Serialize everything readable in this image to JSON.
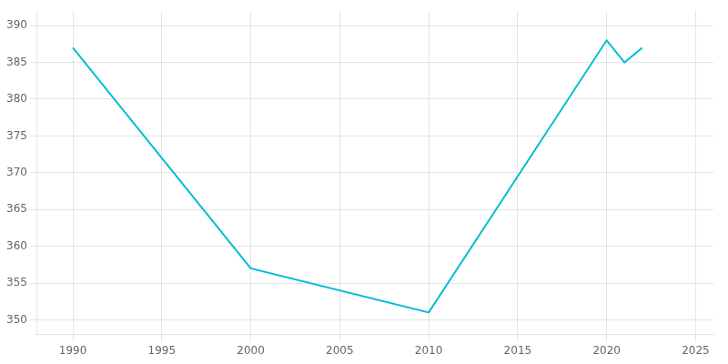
{
  "chart_data": {
    "type": "line",
    "x": [
      1990,
      2000,
      2010,
      2020,
      2021,
      2022
    ],
    "values": [
      387,
      357,
      351,
      388,
      385,
      387
    ],
    "color": "#00bcd4",
    "xlim": [
      1988,
      2026
    ],
    "ylim": [
      348,
      392
    ],
    "xticks": [
      1990,
      1995,
      2000,
      2005,
      2010,
      2015,
      2020,
      2025
    ],
    "yticks": [
      350,
      355,
      360,
      365,
      370,
      375,
      380,
      385,
      390
    ],
    "grid": true
  }
}
